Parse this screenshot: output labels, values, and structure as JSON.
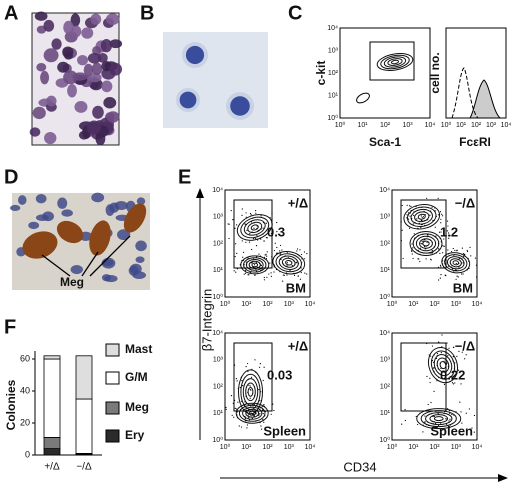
{
  "panels": {
    "a": {
      "label": "A"
    },
    "b": {
      "label": "B"
    },
    "c": {
      "label": "C",
      "y_label": "c-kit",
      "x_label": "Sca-1",
      "hist_y_label": "cell no.",
      "hist_x_label": "FcεRI",
      "ticks": [
        "10⁰",
        "10¹",
        "10²",
        "10³",
        "10⁴"
      ]
    },
    "d": {
      "label": "D",
      "annotation": "Meg"
    },
    "e": {
      "label": "E",
      "y_label": "β7-Integrin",
      "x_label": "CD34",
      "ticks": [
        "10⁰",
        "10¹",
        "10²",
        "10³",
        "10⁴"
      ],
      "plots": [
        {
          "genotype": "+/Δ",
          "gate_value": "0.3",
          "tissue": "BM"
        },
        {
          "genotype": "−/Δ",
          "gate_value": "1.2",
          "tissue": "BM"
        },
        {
          "genotype": "+/Δ",
          "gate_value": "0.03",
          "tissue": "Spleen"
        },
        {
          "genotype": "−/Δ",
          "gate_value": "0.22",
          "tissue": "Spleen"
        }
      ]
    },
    "f": {
      "label": "F"
    }
  },
  "chart_data": {
    "type": "bar",
    "stacked": true,
    "ylabel": "Colonies",
    "categories": [
      "+/Δ",
      "−/Δ"
    ],
    "series": [
      {
        "name": "Ery",
        "color": "#2b2b2b",
        "values": [
          4,
          0.5
        ]
      },
      {
        "name": "Meg",
        "color": "#7a7a7a",
        "values": [
          7,
          0.5
        ]
      },
      {
        "name": "G/M",
        "color": "#ffffff",
        "values": [
          49,
          34
        ]
      },
      {
        "name": "Mast",
        "color": "#dedede",
        "values": [
          2,
          27
        ]
      }
    ],
    "ylim": [
      0,
      65
    ],
    "yticks": [
      0,
      20,
      40,
      60
    ]
  }
}
